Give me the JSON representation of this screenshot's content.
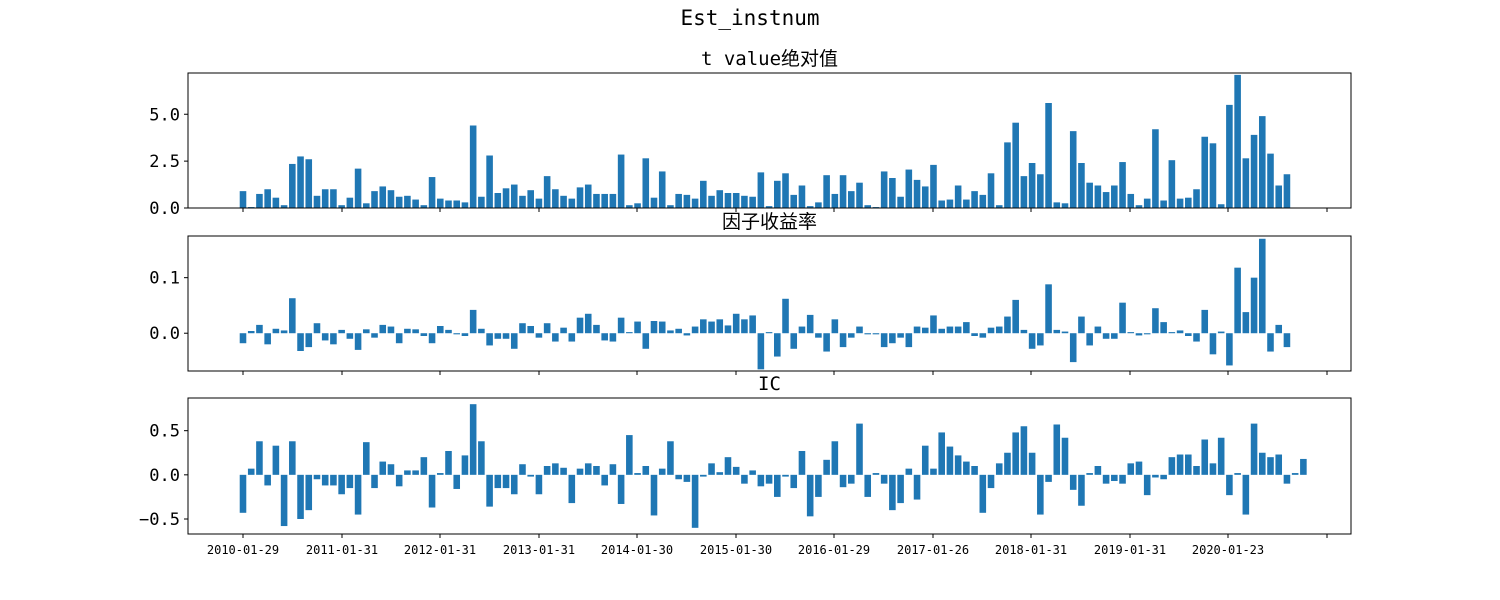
{
  "figure": {
    "title": "Est_instnum"
  },
  "colors": {
    "bar": "#1f77b4",
    "axis": "#000000"
  },
  "chart_data": [
    {
      "type": "bar",
      "title": "t value绝对值",
      "ylim": [
        0,
        7.2
      ],
      "yticks": [
        0.0,
        2.5,
        5.0
      ],
      "ytick_labels": [
        "0.0",
        "2.5",
        "5.0"
      ],
      "xtick_labels": [
        "2010-01-29",
        "2011-01-31",
        "2012-01-31",
        "2013-01-31",
        "2014-01-30",
        "2015-01-30",
        "2016-01-29",
        "2017-01-26",
        "2018-01-31",
        "2019-01-31",
        "2020-01-23"
      ],
      "show_xtick_labels": false,
      "grid": false,
      "values": [
        0.9,
        0.05,
        0.75,
        1.0,
        0.55,
        0.15,
        2.35,
        2.75,
        2.6,
        0.65,
        1.0,
        1.0,
        0.15,
        0.55,
        2.1,
        0.25,
        0.9,
        1.15,
        0.95,
        0.6,
        0.65,
        0.45,
        0.15,
        1.65,
        0.5,
        0.4,
        0.4,
        0.3,
        4.4,
        0.6,
        2.8,
        0.8,
        1.05,
        1.25,
        0.65,
        0.95,
        0.5,
        1.7,
        1.0,
        0.65,
        0.5,
        1.1,
        1.25,
        0.75,
        0.75,
        0.75,
        2.85,
        0.15,
        0.25,
        2.65,
        0.55,
        1.95,
        0.15,
        0.75,
        0.7,
        0.5,
        1.45,
        0.65,
        0.95,
        0.8,
        0.8,
        0.65,
        0.6,
        1.9,
        0.1,
        1.45,
        1.85,
        0.7,
        1.2,
        0.1,
        0.3,
        1.75,
        0.75,
        1.75,
        0.9,
        1.35,
        0.15,
        0.05,
        1.95,
        1.6,
        0.6,
        2.05,
        1.5,
        1.15,
        2.3,
        0.4,
        0.45,
        1.2,
        0.45,
        0.9,
        0.7,
        1.85,
        0.15,
        3.5,
        4.55,
        1.7,
        2.4,
        1.8,
        5.6,
        0.3,
        0.25,
        4.1,
        2.4,
        1.35,
        1.2,
        0.85,
        1.2,
        2.45,
        0.75,
        0.15,
        0.5,
        4.2,
        0.4,
        2.55,
        0.5,
        0.55,
        1.0,
        3.8,
        3.45,
        0.2,
        5.5,
        7.1,
        2.65,
        3.9,
        4.9,
        2.9,
        1.2,
        1.8
      ]
    },
    {
      "type": "bar",
      "title": "因子收益率",
      "ylim": [
        -0.068,
        0.175
      ],
      "yticks": [
        0.0,
        0.1
      ],
      "ytick_labels": [
        "0.0",
        "0.1"
      ],
      "xtick_labels": [
        "2010-01-29",
        "2011-01-31",
        "2012-01-31",
        "2013-01-31",
        "2014-01-30",
        "2015-01-30",
        "2016-01-29",
        "2017-01-26",
        "2018-01-31",
        "2019-01-31",
        "2020-01-23"
      ],
      "show_xtick_labels": false,
      "grid": false,
      "values": [
        -0.018,
        0.004,
        0.015,
        -0.02,
        0.008,
        0.005,
        0.063,
        -0.032,
        -0.025,
        0.018,
        -0.013,
        -0.02,
        0.006,
        -0.01,
        -0.03,
        0.007,
        -0.008,
        0.015,
        0.012,
        -0.018,
        0.008,
        0.007,
        -0.005,
        -0.018,
        0.013,
        0.006,
        -0.002,
        -0.005,
        0.042,
        0.008,
        -0.022,
        -0.01,
        -0.01,
        -0.028,
        0.018,
        0.013,
        -0.008,
        0.018,
        -0.015,
        0.01,
        -0.015,
        0.028,
        0.035,
        0.015,
        -0.013,
        -0.015,
        0.028,
        0.002,
        0.021,
        -0.028,
        0.022,
        0.021,
        0.005,
        0.008,
        -0.004,
        0.012,
        0.025,
        0.021,
        0.025,
        0.014,
        0.035,
        0.025,
        0.032,
        -0.065,
        0.002,
        -0.042,
        0.062,
        -0.028,
        0.012,
        0.033,
        -0.008,
        -0.033,
        0.025,
        -0.025,
        -0.008,
        0.012,
        -0.002,
        -0.002,
        -0.025,
        -0.018,
        -0.008,
        -0.025,
        0.012,
        0.01,
        0.032,
        0.008,
        0.012,
        0.012,
        0.02,
        -0.005,
        -0.008,
        0.01,
        0.012,
        0.03,
        0.06,
        0.006,
        -0.028,
        -0.022,
        0.088,
        0.006,
        0.003,
        -0.052,
        0.03,
        -0.022,
        0.012,
        -0.01,
        -0.01,
        0.055,
        0.002,
        -0.004,
        -0.002,
        0.045,
        0.02,
        0.002,
        0.005,
        -0.005,
        -0.015,
        0.042,
        -0.038,
        0.003,
        -0.058,
        0.118,
        0.038,
        0.1,
        0.17,
        -0.033,
        0.015,
        -0.025
      ]
    },
    {
      "type": "bar",
      "title": "IC",
      "ylim": [
        -0.67,
        0.87
      ],
      "yticks": [
        -0.5,
        0.0,
        0.5
      ],
      "ytick_labels": [
        "−0.5",
        "0.0",
        "0.5"
      ],
      "xtick_labels": [
        "2010-01-29",
        "2011-01-31",
        "2012-01-31",
        "2013-01-31",
        "2014-01-30",
        "2015-01-30",
        "2016-01-29",
        "2017-01-26",
        "2018-01-31",
        "2019-01-31",
        "2020-01-23"
      ],
      "show_xtick_labels": true,
      "grid": false,
      "values": [
        -0.43,
        0.07,
        0.38,
        -0.12,
        0.33,
        -0.58,
        0.38,
        -0.5,
        -0.4,
        -0.05,
        -0.12,
        -0.12,
        -0.22,
        -0.15,
        -0.45,
        0.37,
        -0.15,
        0.15,
        0.12,
        -0.13,
        0.05,
        0.05,
        0.2,
        -0.37,
        0.02,
        0.27,
        -0.16,
        0.22,
        0.8,
        0.38,
        -0.36,
        -0.15,
        -0.15,
        -0.22,
        0.12,
        -0.02,
        -0.22,
        0.1,
        0.13,
        0.08,
        -0.32,
        0.07,
        0.13,
        0.1,
        -0.12,
        0.12,
        -0.33,
        0.45,
        0.02,
        0.1,
        -0.46,
        0.07,
        0.38,
        -0.05,
        -0.08,
        -0.6,
        -0.02,
        0.13,
        0.03,
        0.2,
        0.09,
        -0.1,
        0.05,
        -0.13,
        -0.1,
        -0.25,
        -0.02,
        -0.15,
        0.27,
        -0.47,
        -0.25,
        0.17,
        0.38,
        -0.14,
        -0.1,
        0.58,
        -0.25,
        0.02,
        -0.1,
        -0.4,
        -0.32,
        0.07,
        -0.28,
        0.33,
        0.07,
        0.48,
        0.32,
        0.22,
        0.15,
        0.1,
        -0.43,
        -0.15,
        0.13,
        0.25,
        0.48,
        0.55,
        0.25,
        -0.45,
        -0.08,
        0.57,
        0.42,
        -0.17,
        -0.35,
        0.02,
        0.1,
        -0.1,
        -0.07,
        -0.1,
        0.13,
        0.15,
        -0.23,
        -0.03,
        -0.05,
        0.2,
        0.23,
        0.23,
        0.1,
        0.4,
        0.13,
        0.42,
        -0.23,
        0.02,
        -0.45,
        0.58,
        0.25,
        0.2,
        0.23,
        -0.1,
        0.02,
        0.18
      ]
    }
  ]
}
